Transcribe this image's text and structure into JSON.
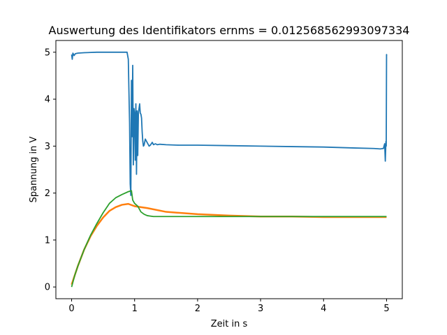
{
  "chart_data": {
    "type": "line",
    "title": "Auswertung des Identifikators ernms = 0.012568562993097334",
    "xlabel": "Zeit in s",
    "ylabel": "Spannung in V",
    "xlim": [
      -0.25,
      5.25
    ],
    "ylim": [
      -0.25,
      5.25
    ],
    "xticks": [
      0,
      1,
      2,
      3,
      4,
      5
    ],
    "yticks": [
      0,
      1,
      2,
      3,
      4,
      5
    ],
    "grid": false,
    "legend": "none",
    "series": [
      {
        "color": "#1f77b4",
        "x": [
          0.0,
          0.01,
          0.02,
          0.04,
          0.06,
          0.1,
          0.2,
          0.4,
          0.6,
          0.8,
          0.88,
          0.9,
          0.92,
          0.93,
          0.94,
          0.95,
          0.96,
          0.97,
          0.98,
          0.99,
          1.0,
          1.01,
          1.02,
          1.03,
          1.04,
          1.05,
          1.06,
          1.07,
          1.08,
          1.09,
          1.1,
          1.11,
          1.12,
          1.13,
          1.14,
          1.15,
          1.17,
          1.19,
          1.21,
          1.23,
          1.25,
          1.28,
          1.3,
          1.33,
          1.36,
          1.4,
          1.5,
          1.7,
          2.0,
          2.5,
          3.0,
          3.5,
          4.0,
          4.5,
          4.8,
          4.9,
          4.95,
          4.97,
          4.98,
          4.99,
          4.995,
          5.0,
          5.002
        ],
        "y": [
          4.95,
          4.85,
          4.98,
          4.93,
          4.97,
          4.98,
          4.99,
          5.0,
          5.0,
          5.0,
          5.0,
          4.85,
          3.5,
          2.2,
          1.95,
          4.4,
          3.2,
          4.72,
          2.6,
          3.8,
          3.7,
          2.7,
          3.9,
          2.4,
          3.75,
          2.8,
          3.7,
          3.8,
          3.9,
          3.7,
          3.68,
          3.6,
          3.3,
          3.1,
          3.0,
          3.02,
          3.15,
          3.1,
          3.05,
          3.0,
          3.02,
          3.08,
          3.03,
          3.05,
          3.03,
          3.04,
          3.03,
          3.02,
          3.02,
          3.01,
          3.0,
          2.99,
          2.98,
          2.96,
          2.95,
          2.94,
          2.95,
          3.05,
          2.68,
          3.1,
          3.0,
          4.95,
          4.93
        ]
      },
      {
        "color": "#ff7f0e",
        "x": [
          0.0,
          0.1,
          0.2,
          0.3,
          0.4,
          0.5,
          0.6,
          0.7,
          0.8,
          0.9,
          1.0,
          1.2,
          1.5,
          2.0,
          2.5,
          3.0,
          3.5,
          4.0,
          4.5,
          5.0
        ],
        "y": [
          0.05,
          0.45,
          0.8,
          1.08,
          1.3,
          1.48,
          1.62,
          1.7,
          1.75,
          1.77,
          1.72,
          1.68,
          1.6,
          1.55,
          1.52,
          1.5,
          1.5,
          1.49,
          1.49,
          1.49
        ]
      },
      {
        "color": "#2ca02c",
        "x": [
          0.0,
          0.02,
          0.05,
          0.1,
          0.2,
          0.3,
          0.4,
          0.5,
          0.6,
          0.7,
          0.8,
          0.9,
          0.95,
          0.97,
          1.0,
          1.05,
          1.1,
          1.15,
          1.2,
          1.25,
          1.3,
          1.5,
          2.0,
          3.0,
          4.0,
          5.0
        ],
        "y": [
          0.0,
          0.1,
          0.25,
          0.45,
          0.8,
          1.1,
          1.35,
          1.58,
          1.78,
          1.9,
          1.97,
          2.03,
          2.05,
          1.85,
          1.78,
          1.72,
          1.6,
          1.55,
          1.52,
          1.51,
          1.5,
          1.5,
          1.5,
          1.5,
          1.5,
          1.5
        ]
      }
    ]
  }
}
